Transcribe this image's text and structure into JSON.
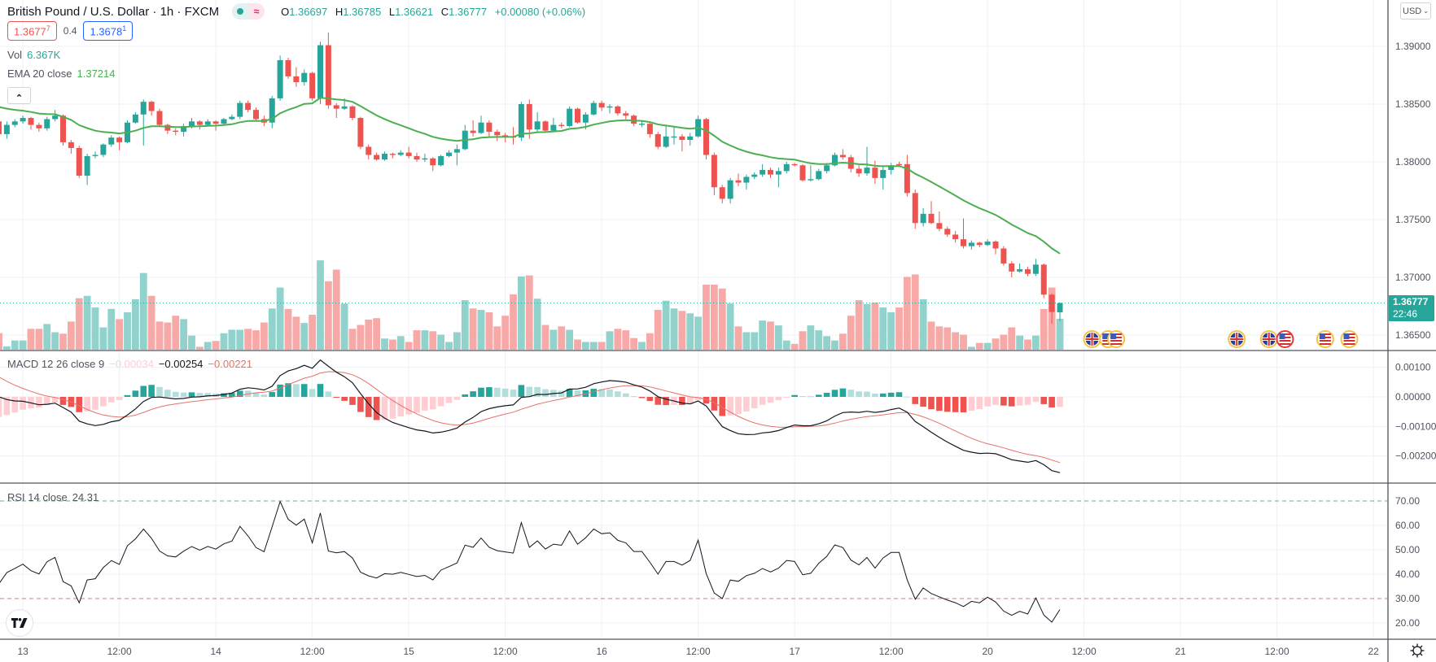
{
  "header": {
    "title": "British Pound / U.S. Dollar · 1h · FXCM",
    "ohlc": {
      "o_label": "O",
      "o": "1.36697",
      "h_label": "H",
      "h": "1.36785",
      "l_label": "L",
      "l": "1.36621",
      "c_label": "C",
      "c": "1.36777",
      "change": "+0.00080 (+0.06%)"
    },
    "sell_price": "1.3677",
    "sell_sup": "7",
    "spread": "0.4",
    "buy_price": "1.3678",
    "buy_sup": "1",
    "market_status_icon": "market-open-dot",
    "delayed_icon": "approx-icon",
    "approx_symbol": "≈"
  },
  "legends": {
    "vol": {
      "label": "Vol",
      "value": "6.367K"
    },
    "ema": {
      "label": "EMA 20 close",
      "value": "1.37214"
    },
    "macd": {
      "label": "MACD 12 26 close 9",
      "hist": "−0.00034",
      "macd": "−0.00254",
      "signal": "−0.00221"
    },
    "rsi": {
      "label": "RSI 14 close",
      "value": "24.31"
    },
    "collapse_symbol": "⌃"
  },
  "currency_button": "USD",
  "last_price_tag": {
    "price": "1.36777",
    "countdown": "22:46"
  },
  "colors": {
    "up": "#26a69a",
    "down": "#ef5350",
    "vol_up": "#92d2cc",
    "vol_down": "#f7a9a7",
    "ema": "#4caf50",
    "macd": "#131722",
    "signal": "#e57368",
    "rsi": "#131722",
    "grid": "#eef0f4"
  },
  "price_axis": {
    "ticks": [
      [
        "1.39000",
        1.39
      ],
      [
        "1.38500",
        1.385
      ],
      [
        "1.38000",
        1.38
      ],
      [
        "1.37500",
        1.375
      ],
      [
        "1.37000",
        1.37
      ],
      [
        "1.36500",
        1.365
      ]
    ]
  },
  "macd_axis": {
    "ticks": [
      [
        "0.00100",
        0.001
      ],
      [
        "0.00000",
        0
      ],
      [
        "−0.00100",
        -0.001
      ],
      [
        "−0.00200",
        -0.002
      ]
    ]
  },
  "rsi_axis": {
    "ticks": [
      [
        "70.00",
        70
      ],
      [
        "60.00",
        60
      ],
      [
        "50.00",
        50
      ],
      [
        "40.00",
        40
      ],
      [
        "30.00",
        30
      ],
      [
        "20.00",
        20
      ]
    ],
    "upper": 70,
    "lower": 30
  },
  "time_axis": {
    "labels": [
      {
        "text": "13",
        "bar": 3
      },
      {
        "text": "12:00",
        "bar": 15
      },
      {
        "text": "14",
        "bar": 27
      },
      {
        "text": "12:00",
        "bar": 39
      },
      {
        "text": "15",
        "bar": 51
      },
      {
        "text": "12:00",
        "bar": 63
      },
      {
        "text": "16",
        "bar": 75
      },
      {
        "text": "12:00",
        "bar": 87
      },
      {
        "text": "17",
        "bar": 99
      },
      {
        "text": "12:00",
        "bar": 111
      },
      {
        "text": "20",
        "bar": 123
      },
      {
        "text": "12:00",
        "bar": 135
      },
      {
        "text": "21",
        "bar": 147
      },
      {
        "text": "12:00",
        "bar": 159
      },
      {
        "text": "22",
        "bar": 171
      }
    ]
  },
  "events": [
    {
      "country": "GB",
      "hours_after_20_0000": 13
    },
    {
      "country": "US",
      "hours_after_20_0000": 15
    },
    {
      "country": "US",
      "hours_after_20_0000": 16
    },
    {
      "country": "GB",
      "hours_after_20_0000": 31
    },
    {
      "country": "GB",
      "hours_after_20_0000": 35
    },
    {
      "country": "US",
      "hours_after_20_0000": 37,
      "important": true
    },
    {
      "country": "US",
      "hours_after_20_0000": 42
    },
    {
      "country": "US",
      "hours_after_20_0000": 45
    }
  ],
  "chart_data": {
    "type": "candlestick",
    "title": "British Pound / U.S. Dollar · 1h · FXCM",
    "columns": [
      "open",
      "high",
      "low",
      "close",
      "volume_k"
    ],
    "day20_bar": 123,
    "indicators": {
      "ema": {
        "length": 20,
        "warmup": 1.385
      },
      "macd": {
        "fast": 12,
        "slow": 26,
        "signal": 9,
        "warmup_fast": 1.3847,
        "warmup_slow": 1.3845,
        "warmup_signal": 0.00085
      },
      "rsi": {
        "length": 14,
        "warmup_gain": 0.0003,
        "warmup_loss": 0.00045
      }
    },
    "rows": [
      [
        1.3835,
        1.3838,
        1.3822,
        1.3824,
        3.4
      ],
      [
        1.3824,
        1.3835,
        1.382,
        1.3832,
        0.7
      ],
      [
        1.3832,
        1.3837,
        1.383,
        1.3835,
        1.9
      ],
      [
        1.3835,
        1.384,
        1.3833,
        1.3838,
        1.9
      ],
      [
        1.3838,
        1.3839,
        1.3828,
        1.3832,
        4.3
      ],
      [
        1.3832,
        1.3834,
        1.3826,
        1.3829,
        4.3
      ],
      [
        1.3829,
        1.3839,
        1.3827,
        1.3837,
        5.3
      ],
      [
        1.3837,
        1.3845,
        1.3835,
        1.384,
        3.6
      ],
      [
        1.384,
        1.3841,
        1.3814,
        1.3817,
        3.3
      ],
      [
        1.3817,
        1.3819,
        1.3807,
        1.3812,
        5.8
      ],
      [
        1.3812,
        1.3814,
        1.3786,
        1.3788,
        10.6
      ],
      [
        1.3788,
        1.3807,
        1.378,
        1.3805,
        11.1
      ],
      [
        1.3805,
        1.3809,
        1.3803,
        1.3806,
        8.7
      ],
      [
        1.3806,
        1.3816,
        1.3804,
        1.3815,
        4.6
      ],
      [
        1.3815,
        1.3823,
        1.3813,
        1.3821,
        8.4
      ],
      [
        1.3821,
        1.3822,
        1.381,
        1.3817,
        6.3
      ],
      [
        1.3817,
        1.3836,
        1.3816,
        1.3834,
        7.7
      ],
      [
        1.3834,
        1.3843,
        1.3833,
        1.3841,
        10.4
      ],
      [
        1.3841,
        1.3854,
        1.3814,
        1.3852,
        15.8
      ],
      [
        1.3852,
        1.3853,
        1.384,
        1.3844,
        11.1
      ],
      [
        1.3844,
        1.3846,
        1.383,
        1.3832,
        5.8
      ],
      [
        1.3832,
        1.3833,
        1.3824,
        1.3827,
        5.6
      ],
      [
        1.3827,
        1.3829,
        1.3823,
        1.3826,
        7.0
      ],
      [
        1.3826,
        1.3833,
        1.3822,
        1.3831,
        6.3
      ],
      [
        1.3831,
        1.3838,
        1.3829,
        1.3835,
        2.9
      ],
      [
        1.3835,
        1.3836,
        1.3828,
        1.3832,
        0.6
      ],
      [
        1.3832,
        1.3837,
        1.3831,
        1.3835,
        1.6
      ],
      [
        1.3835,
        1.3836,
        1.3827,
        1.3833,
        1.8
      ],
      [
        1.3833,
        1.3838,
        1.3832,
        1.3837,
        3.4
      ],
      [
        1.3837,
        1.3841,
        1.3836,
        1.3839,
        4.1
      ],
      [
        1.3839,
        1.3853,
        1.3837,
        1.3851,
        4.1
      ],
      [
        1.3851,
        1.3853,
        1.3843,
        1.3845,
        4.3
      ],
      [
        1.3845,
        1.3847,
        1.3835,
        1.3837,
        4.0
      ],
      [
        1.3837,
        1.384,
        1.3831,
        1.3834,
        5.6
      ],
      [
        1.3834,
        1.3857,
        1.3829,
        1.3855,
        8.5
      ],
      [
        1.3855,
        1.3892,
        1.3853,
        1.3888,
        12.8
      ],
      [
        1.3888,
        1.389,
        1.3872,
        1.3874,
        8.4
      ],
      [
        1.3874,
        1.3882,
        1.3865,
        1.3869,
        6.8
      ],
      [
        1.3869,
        1.388,
        1.3866,
        1.3877,
        5.5
      ],
      [
        1.3877,
        1.3878,
        1.3853,
        1.3855,
        7.2
      ],
      [
        1.3855,
        1.3904,
        1.385,
        1.3901,
        18.4
      ],
      [
        1.3901,
        1.3912,
        1.3846,
        1.3849,
        14.1
      ],
      [
        1.3849,
        1.3851,
        1.3838,
        1.3846,
        16.5
      ],
      [
        1.3846,
        1.3855,
        1.3845,
        1.3848,
        9.5
      ],
      [
        1.3848,
        1.3849,
        1.3836,
        1.3838,
        4.3
      ],
      [
        1.3838,
        1.3839,
        1.3811,
        1.3813,
        5.1
      ],
      [
        1.3813,
        1.3815,
        1.3802,
        1.3806,
        6.2
      ],
      [
        1.3806,
        1.3808,
        1.3801,
        1.3802,
        6.5
      ],
      [
        1.3802,
        1.3809,
        1.3801,
        1.3807,
        2.3
      ],
      [
        1.3807,
        1.3808,
        1.3803,
        1.3806,
        2.1
      ],
      [
        1.3806,
        1.381,
        1.3805,
        1.3808,
        2.8
      ],
      [
        1.3808,
        1.3813,
        1.3803,
        1.3805,
        1.6
      ],
      [
        1.3805,
        1.3808,
        1.38,
        1.3802,
        4.0
      ],
      [
        1.3802,
        1.3807,
        1.38,
        1.3803,
        4.0
      ],
      [
        1.3803,
        1.3804,
        1.3792,
        1.3797,
        3.8
      ],
      [
        1.3797,
        1.3806,
        1.3796,
        1.3805,
        3.1
      ],
      [
        1.3805,
        1.381,
        1.3804,
        1.3808,
        1.6
      ],
      [
        1.3808,
        1.3815,
        1.3797,
        1.3811,
        3.6
      ],
      [
        1.3811,
        1.3832,
        1.381,
        1.3827,
        10.2
      ],
      [
        1.3827,
        1.3836,
        1.3822,
        1.3825,
        8.5
      ],
      [
        1.3825,
        1.384,
        1.3824,
        1.3834,
        8.2
      ],
      [
        1.3834,
        1.3836,
        1.3822,
        1.3826,
        7.7
      ],
      [
        1.3826,
        1.3828,
        1.3818,
        1.3823,
        4.8
      ],
      [
        1.3823,
        1.3825,
        1.3817,
        1.3822,
        7.0
      ],
      [
        1.3822,
        1.383,
        1.3815,
        1.3821,
        11.4
      ],
      [
        1.3821,
        1.3852,
        1.3818,
        1.385,
        15.1
      ],
      [
        1.385,
        1.3854,
        1.382,
        1.3828,
        15.3
      ],
      [
        1.3828,
        1.3843,
        1.3826,
        1.3835,
        10.5
      ],
      [
        1.3835,
        1.3836,
        1.3825,
        1.3827,
        5.1
      ],
      [
        1.3827,
        1.3838,
        1.3826,
        1.3832,
        4.1
      ],
      [
        1.3832,
        1.3834,
        1.3829,
        1.3831,
        4.8
      ],
      [
        1.3831,
        1.3848,
        1.383,
        1.3846,
        4.1
      ],
      [
        1.3846,
        1.3847,
        1.3833,
        1.3834,
        2.1
      ],
      [
        1.3834,
        1.3843,
        1.3828,
        1.3841,
        1.6
      ],
      [
        1.3841,
        1.3853,
        1.384,
        1.3851,
        1.6
      ],
      [
        1.3851,
        1.3853,
        1.3844,
        1.3847,
        1.6
      ],
      [
        1.3847,
        1.385,
        1.3842,
        1.3848,
        3.8
      ],
      [
        1.3848,
        1.3849,
        1.384,
        1.3842,
        4.3
      ],
      [
        1.3842,
        1.3844,
        1.3837,
        1.384,
        4.0
      ],
      [
        1.384,
        1.3841,
        1.3831,
        1.3833,
        2.4
      ],
      [
        1.3832,
        1.3836,
        1.383,
        1.3833,
        1.6
      ],
      [
        1.3833,
        1.3835,
        1.3821,
        1.3824,
        3.4
      ],
      [
        1.3824,
        1.3826,
        1.3811,
        1.3813,
        8.2
      ],
      [
        1.3813,
        1.3832,
        1.3812,
        1.3822,
        10.1
      ],
      [
        1.3821,
        1.383,
        1.3815,
        1.3822,
        8.5
      ],
      [
        1.3822,
        1.3824,
        1.3809,
        1.3819,
        8.0
      ],
      [
        1.3819,
        1.3825,
        1.3814,
        1.3822,
        7.5
      ],
      [
        1.3822,
        1.384,
        1.3821,
        1.3837,
        6.8
      ],
      [
        1.3837,
        1.3838,
        1.3802,
        1.3806,
        13.4
      ],
      [
        1.3806,
        1.3808,
        1.3771,
        1.3778,
        13.4
      ],
      [
        1.3778,
        1.378,
        1.3764,
        1.3768,
        12.6
      ],
      [
        1.3768,
        1.3786,
        1.3764,
        1.3784,
        9.5
      ],
      [
        1.3784,
        1.379,
        1.3779,
        1.3782,
        4.8
      ],
      [
        1.3782,
        1.3789,
        1.3776,
        1.3787,
        3.6
      ],
      [
        1.3787,
        1.3791,
        1.3785,
        1.3789,
        3.6
      ],
      [
        1.3789,
        1.3798,
        1.3787,
        1.3793,
        6.0
      ],
      [
        1.3793,
        1.3795,
        1.3786,
        1.3789,
        5.8
      ],
      [
        1.3789,
        1.3795,
        1.3778,
        1.3792,
        5.0
      ],
      [
        1.3792,
        1.38,
        1.379,
        1.3798,
        1.9
      ],
      [
        1.3798,
        1.3799,
        1.3796,
        1.3797,
        1.2
      ],
      [
        1.3797,
        1.3798,
        1.3783,
        1.3784,
        3.8
      ],
      [
        1.3784,
        1.3797,
        1.3783,
        1.3785,
        5.0
      ],
      [
        1.3785,
        1.3794,
        1.3784,
        1.3792,
        4.0
      ],
      [
        1.3792,
        1.3799,
        1.379,
        1.3797,
        2.8
      ],
      [
        1.3797,
        1.3808,
        1.3796,
        1.3806,
        1.9
      ],
      [
        1.3806,
        1.3811,
        1.3802,
        1.3804,
        3.3
      ],
      [
        1.3804,
        1.3806,
        1.3791,
        1.3794,
        7.0
      ],
      [
        1.3794,
        1.3797,
        1.3787,
        1.379,
        10.2
      ],
      [
        1.379,
        1.3813,
        1.3788,
        1.3795,
        9.4
      ],
      [
        1.3795,
        1.3801,
        1.3781,
        1.3786,
        9.7
      ],
      [
        1.3786,
        1.3797,
        1.3776,
        1.3793,
        8.7
      ],
      [
        1.3793,
        1.3799,
        1.3789,
        1.3797,
        7.7
      ],
      [
        1.3798,
        1.38,
        1.3796,
        1.3797,
        8.7
      ],
      [
        1.3798,
        1.3806,
        1.377,
        1.3773,
        15.0
      ],
      [
        1.3773,
        1.3776,
        1.3742,
        1.3747,
        15.5
      ],
      [
        1.3747,
        1.376,
        1.3744,
        1.3755,
        10.4
      ],
      [
        1.3755,
        1.3766,
        1.3746,
        1.3747,
        5.8
      ],
      [
        1.3747,
        1.3757,
        1.374,
        1.3742,
        4.8
      ],
      [
        1.3742,
        1.3744,
        1.3735,
        1.3737,
        4.6
      ],
      [
        1.3737,
        1.374,
        1.373,
        1.3733,
        3.6
      ],
      [
        1.3733,
        1.3751,
        1.3725,
        1.3727,
        3.1
      ],
      [
        1.3727,
        1.3732,
        1.3724,
        1.373,
        0.6
      ],
      [
        1.373,
        1.3731,
        1.3726,
        1.3728,
        1.4
      ],
      [
        1.3728,
        1.3733,
        1.3727,
        1.3731,
        1.4
      ],
      [
        1.3731,
        1.3732,
        1.372,
        1.3725,
        2.3
      ],
      [
        1.3725,
        1.3727,
        1.371,
        1.3712,
        3.1
      ],
      [
        1.3712,
        1.3714,
        1.37,
        1.3705,
        4.6
      ],
      [
        1.3705,
        1.3712,
        1.3704,
        1.3707,
        2.9
      ],
      [
        1.3707,
        1.3709,
        1.3701,
        1.3703,
        2.1
      ],
      [
        1.3703,
        1.3716,
        1.3701,
        1.3711,
        2.9
      ],
      [
        1.3711,
        1.3712,
        1.3682,
        1.3685,
        8.4
      ],
      [
        1.3685,
        1.3686,
        1.366,
        1.367,
        12.8
      ],
      [
        1.36697,
        1.36785,
        1.36621,
        1.36777,
        6.367
      ]
    ]
  }
}
